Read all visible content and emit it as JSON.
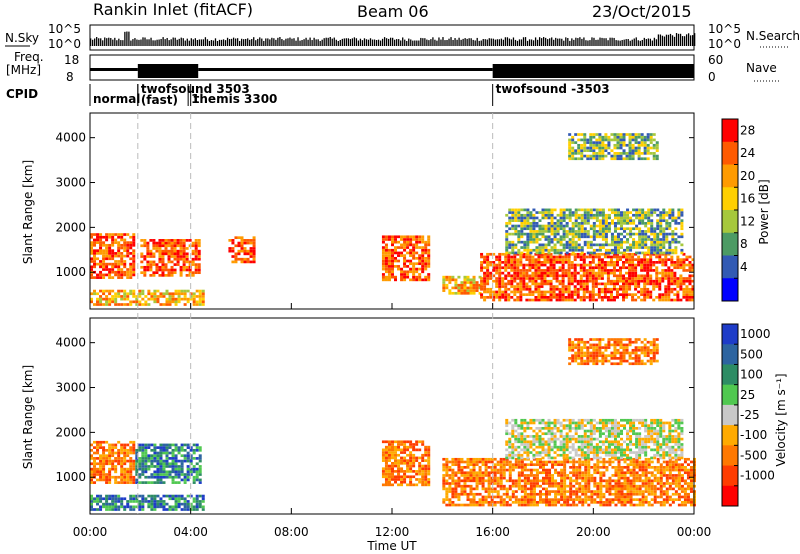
{
  "header": {
    "title": "Rankin Inlet (fitACF)",
    "beam": "Beam 06",
    "date": "23/Oct/2015"
  },
  "strip_labels": {
    "nsky": "N.Sky",
    "nsky_ticks": [
      "10^5",
      "10^0"
    ],
    "nsearch": "N.Search",
    "nsearch_ticks": [
      "10^5",
      "10^0"
    ],
    "freq_line1": "Freq.",
    "freq_line2": "[MHz]",
    "freq_ticks": [
      "18",
      "8"
    ],
    "nave": "Nave",
    "nave_ticks": [
      "60",
      "0"
    ],
    "cpid": "CPID"
  },
  "modes": [
    {
      "name": "normal",
      "start_hour": 0.0
    },
    {
      "name": "twofsound 3503",
      "start_hour": 1.9
    },
    {
      "name": "(fast)",
      "start_hour": 1.9
    },
    {
      "name": "1",
      "start_hour": 3.9
    },
    {
      "name": "themis 3300",
      "start_hour": 4.0
    },
    {
      "name": "twofsound -3503",
      "start_hour": 16.0
    }
  ],
  "chart_data": [
    {
      "type": "heatmap",
      "ylabel": "Slant Range [km]",
      "xlabel": "",
      "x_range_hours": [
        0,
        24
      ],
      "ylim": [
        180,
        4550
      ],
      "y_ticks": [
        "1000",
        "2000",
        "3000",
        "4000"
      ],
      "y_tick_values": [
        1000,
        2000,
        3000,
        4000
      ],
      "colorbar": {
        "label": "Power [dB]",
        "ticks": [
          "28",
          "24",
          "20",
          "16",
          "12",
          "8",
          "4"
        ],
        "tick_values": [
          28,
          24,
          20,
          16,
          12,
          8,
          4
        ],
        "colors": [
          "#ff0000",
          "#ff5a00",
          "#ff9b00",
          "#ffd000",
          "#a6c83c",
          "#4c9b64",
          "#325ab4",
          "#0000ff"
        ]
      },
      "bands": [
        {
          "t0": 0.0,
          "t1": 1.8,
          "r0": 850,
          "r1": 1850,
          "level": "high"
        },
        {
          "t0": 2.0,
          "t1": 4.3,
          "r0": 900,
          "r1": 1700,
          "level": "high"
        },
        {
          "t0": 5.5,
          "t1": 6.5,
          "r0": 1200,
          "r1": 1800,
          "level": "high"
        },
        {
          "t0": 11.6,
          "t1": 13.5,
          "r0": 800,
          "r1": 1800,
          "level": "high"
        },
        {
          "t0": 14.0,
          "t1": 15.5,
          "r0": 500,
          "r1": 900,
          "level": "mid"
        },
        {
          "t0": 15.5,
          "t1": 24.0,
          "r0": 350,
          "r1": 1400,
          "level": "high"
        },
        {
          "t0": 16.5,
          "t1": 23.5,
          "r0": 1400,
          "r1": 2400,
          "level": "low"
        },
        {
          "t0": 19.0,
          "t1": 22.5,
          "r0": 3500,
          "r1": 4100,
          "level": "low"
        },
        {
          "t0": 0.0,
          "t1": 4.5,
          "r0": 250,
          "r1": 600,
          "level": "mid"
        }
      ]
    },
    {
      "type": "heatmap",
      "ylabel": "Slant Range [km]",
      "xlabel": "Time UT",
      "x_range_hours": [
        0,
        24
      ],
      "x_ticks": [
        "00:00",
        "04:00",
        "08:00",
        "12:00",
        "16:00",
        "20:00",
        "00:00"
      ],
      "x_tick_hours": [
        0,
        4,
        8,
        12,
        16,
        20,
        24
      ],
      "ylim": [
        180,
        4550
      ],
      "y_ticks": [
        "1000",
        "2000",
        "3000",
        "4000"
      ],
      "y_tick_values": [
        1000,
        2000,
        3000,
        4000
      ],
      "colorbar": {
        "label": "Velocity [m s⁻¹]",
        "ticks": [
          "1000",
          "500",
          "100",
          "25",
          "-25",
          "-100",
          "-500",
          "-1000"
        ],
        "tick_values": [
          1000,
          500,
          100,
          25,
          -25,
          -100,
          -500,
          -1000
        ],
        "colors": [
          "#1e3cc8",
          "#2d64a0",
          "#2d8c64",
          "#50c850",
          "#c8c8c8",
          "#ffaa00",
          "#ff7800",
          "#ff3c00",
          "#ff0000"
        ]
      },
      "bands": [
        {
          "t0": 0.0,
          "t1": 1.8,
          "r0": 850,
          "r1": 1800,
          "level": "neg"
        },
        {
          "t0": 1.8,
          "t1": 4.4,
          "r0": 850,
          "r1": 1700,
          "level": "pos"
        },
        {
          "t0": 11.6,
          "t1": 13.5,
          "r0": 800,
          "r1": 1800,
          "level": "neg"
        },
        {
          "t0": 14.0,
          "t1": 24.0,
          "r0": 350,
          "r1": 1400,
          "level": "neg"
        },
        {
          "t0": 16.5,
          "t1": 23.5,
          "r0": 1400,
          "r1": 2300,
          "level": "zero"
        },
        {
          "t0": 19.0,
          "t1": 22.5,
          "r0": 3500,
          "r1": 4100,
          "level": "neg"
        },
        {
          "t0": 0.0,
          "t1": 4.5,
          "r0": 250,
          "r1": 600,
          "level": "pos"
        }
      ]
    }
  ]
}
